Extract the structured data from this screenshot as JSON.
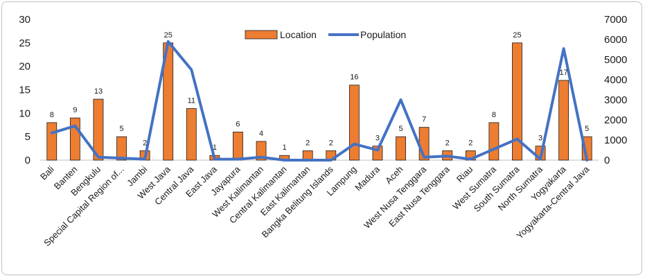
{
  "chart_data": {
    "type": "bar",
    "categories": [
      "Bali",
      "Banten",
      "Bengkulu",
      "Special Capital Region of...",
      "Jambi",
      "West Java",
      "Central Java",
      "East Java",
      "Jayapura",
      "West Kalimantan",
      "Central Kalimantan",
      "East Kalimantan",
      "Bangka Belitung Islands",
      "Lampung",
      "Madura",
      "Aceh",
      "West Nusa Tenggara",
      "East Nusa Tenggara",
      "Riau",
      "West Sumatra",
      "South Sumatra",
      "North Sumatra",
      "Yogyakarta",
      "Yogyakarta-Central Java"
    ],
    "series": [
      {
        "name": "Location",
        "type": "bar",
        "axis": "left",
        "color": "#ED7D31",
        "values": [
          8,
          9,
          13,
          5,
          2,
          25,
          11,
          1,
          6,
          4,
          1,
          2,
          2,
          16,
          3,
          5,
          7,
          2,
          2,
          8,
          25,
          3,
          17,
          5
        ]
      },
      {
        "name": "Population",
        "type": "line",
        "axis": "right",
        "color": "#4472C4",
        "values": [
          1350,
          1700,
          150,
          100,
          50,
          5900,
          4500,
          50,
          50,
          150,
          0,
          0,
          0,
          800,
          500,
          3000,
          150,
          200,
          50,
          550,
          1050,
          50,
          5550,
          0
        ]
      }
    ],
    "y_left": {
      "min": 0,
      "max": 30,
      "ticks": [
        0,
        5,
        10,
        15,
        20,
        25,
        30
      ]
    },
    "y_right": {
      "min": 0,
      "max": 7000,
      "ticks": [
        0,
        1000,
        2000,
        3000,
        4000,
        5000,
        6000,
        7000
      ]
    },
    "legend_position": "top-center",
    "grid": false,
    "title": "",
    "xlabel": "",
    "ylabel": ""
  }
}
